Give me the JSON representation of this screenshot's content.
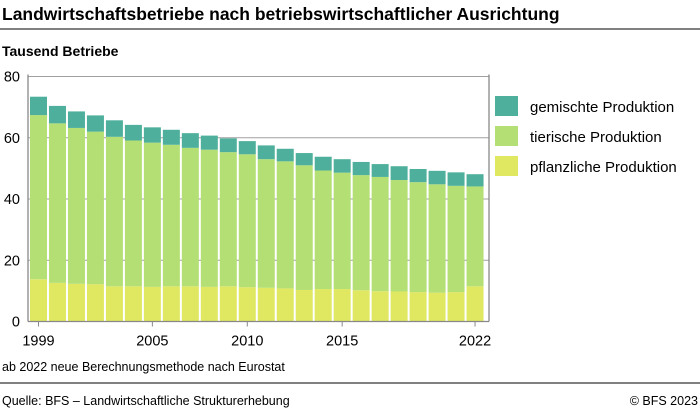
{
  "chart_data": {
    "type": "bar",
    "stacked": true,
    "title": "Landwirtschaftsbetriebe nach betriebswirtschaftlicher Ausrichtung",
    "ylabel": "Tausend Betriebe",
    "ylim": [
      0,
      80
    ],
    "yticks": [
      0,
      20,
      40,
      60,
      80
    ],
    "grid": true,
    "legend_position": "right",
    "categories": [
      1999,
      2000,
      2001,
      2002,
      2003,
      2004,
      2005,
      2006,
      2007,
      2008,
      2009,
      2010,
      2011,
      2012,
      2013,
      2014,
      2015,
      2016,
      2017,
      2018,
      2019,
      2020,
      2021,
      2022
    ],
    "xtick_labels": [
      "1999",
      "2005",
      "2010",
      "2015",
      "2022"
    ],
    "series": [
      {
        "name": "pflanzliche Produktion",
        "color": "#e0e862",
        "values": [
          13.8,
          12.6,
          12.3,
          12.2,
          11.5,
          11.5,
          11.3,
          11.5,
          11.5,
          11.3,
          11.5,
          11.2,
          11.0,
          10.8,
          10.3,
          10.6,
          10.6,
          10.2,
          9.9,
          9.8,
          9.6,
          9.4,
          9.6,
          11.5
        ]
      },
      {
        "name": "tierische Produktion",
        "color": "#b4df74",
        "values": [
          53.6,
          52.1,
          50.9,
          49.8,
          48.8,
          47.6,
          47.1,
          46.2,
          45.2,
          44.8,
          43.8,
          43.4,
          42.0,
          41.5,
          40.7,
          38.7,
          38.0,
          37.6,
          37.3,
          36.4,
          35.9,
          35.4,
          34.7,
          32.6
        ]
      },
      {
        "name": "gemischte Produktion",
        "color": "#4eb09c",
        "values": [
          6.0,
          5.7,
          5.4,
          5.3,
          5.4,
          5.1,
          5.0,
          4.9,
          4.8,
          4.6,
          4.5,
          4.3,
          4.5,
          4.1,
          4.0,
          4.5,
          4.4,
          4.3,
          4.2,
          4.5,
          4.3,
          4.4,
          4.4,
          4.0
        ]
      }
    ],
    "legend_order": [
      "gemischte Produktion",
      "tierische Produktion",
      "pflanzliche Produktion"
    ],
    "note": "ab 2022 neue Berechnungsmethode nach Eurostat"
  },
  "footer": {
    "source": "Quelle: BFS – Landwirtschaftliche Strukturerhebung",
    "copyright": "© BFS 2023"
  }
}
